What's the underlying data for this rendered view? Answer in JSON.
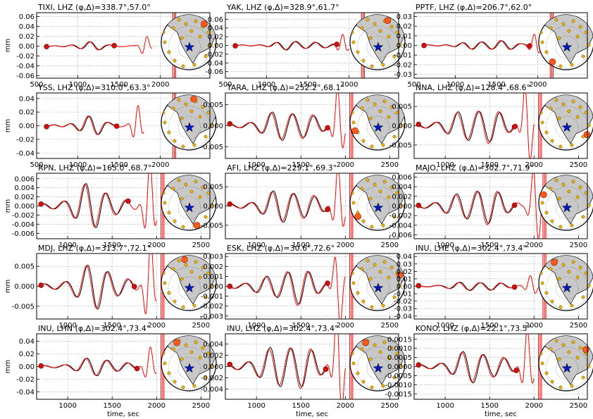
{
  "figure": {
    "ylabel": "mm",
    "xlabel": "time, sec",
    "series_colors": {
      "observed": "#000000",
      "synthetic": "#ff0000"
    },
    "marker_color": "#cc1111",
    "map_colors": {
      "land": "#c8c8c8",
      "stations": "#f0b400",
      "highlight": "#ff5a1e",
      "epicenter": "#0018c0"
    }
  },
  "chart_data": [
    {
      "type": "line",
      "title": "TIXI, LHZ (φ,Δ)=338.7°,57.0°",
      "xlim": [
        500,
        2600
      ],
      "ylim": [
        -0.065,
        0.068
      ],
      "xticks": [
        "500",
        "1000",
        "1500",
        "2000"
      ],
      "yticks": [
        "0.06",
        "0.04",
        "0.02",
        "0.00",
        "-0.02",
        "-0.04",
        "-0.06"
      ],
      "ytick_values": [
        0.06,
        0.04,
        0.02,
        0.0,
        -0.02,
        -0.04,
        -0.06
      ],
      "xtick_values": [
        500,
        1000,
        1500,
        2000
      ],
      "window": [
        620,
        1440
      ],
      "synthetic_end": 1900,
      "amplitude": 0.008,
      "phase": 0.3,
      "cutoff": 2150,
      "station_angle": 50
    },
    {
      "type": "line",
      "title": "YAK, LHZ (φ,Δ)=328.9°,61.7°",
      "xlim": [
        500,
        2600
      ],
      "ylim": [
        -0.075,
        0.075
      ],
      "xticks": [
        "500",
        "1000",
        "1500",
        "2000"
      ],
      "yticks": [
        "0.06",
        "0.04",
        "0.02",
        "0.00",
        "-0.02",
        "-0.04",
        "-0.06"
      ],
      "ytick_values": [
        0.06,
        0.04,
        0.02,
        0.0,
        -0.02,
        -0.04,
        -0.06
      ],
      "xtick_values": [
        500,
        1000,
        1500,
        2000
      ],
      "window": [
        620,
        1850
      ],
      "synthetic_end": 2000,
      "amplitude": 0.01,
      "phase": 1.1,
      "cutoff": 2150,
      "station_angle": 65
    },
    {
      "type": "line",
      "title": "PPTF, LHZ (φ,Δ)=206.7°,62.0°",
      "xlim": [
        500,
        2600
      ],
      "ylim": [
        -0.034,
        0.034
      ],
      "xticks": [
        "500",
        "1000",
        "1500",
        "2000"
      ],
      "yticks": [
        "0.03",
        "0.02",
        "0.01",
        "0.00",
        "-0.01",
        "-0.02",
        "-0.03"
      ],
      "ytick_values": [
        0.03,
        0.02,
        0.01,
        0.0,
        -0.01,
        -0.02,
        -0.03
      ],
      "xtick_values": [
        500,
        1000,
        1500,
        2000
      ],
      "window": [
        620,
        1900
      ],
      "synthetic_end": 2050,
      "amplitude": 0.005,
      "phase": 2.0,
      "cutoff": 2150,
      "station_angle": 235
    },
    {
      "type": "line",
      "title": "YSS, LHZ (φ,Δ)=310.0°,63.3°",
      "xlim": [
        500,
        2600
      ],
      "ylim": [
        -0.048,
        0.048
      ],
      "xticks": [
        "500",
        "1000",
        "1500",
        "2000"
      ],
      "yticks": [
        "0.04",
        "0.02",
        "0.00",
        "-0.02",
        "-0.04"
      ],
      "ytick_values": [
        0.04,
        0.02,
        0.0,
        -0.02,
        -0.04
      ],
      "xtick_values": [
        500,
        1000,
        1500,
        2000
      ],
      "window": [
        620,
        1470
      ],
      "synthetic_end": 1800,
      "amplitude": 0.012,
      "phase": 0.7,
      "cutoff": 2150,
      "station_angle": 78
    },
    {
      "type": "line",
      "title": "TARA, LHZ (φ,Δ)=252.2°,68.1°",
      "xlim": [
        650,
        2600
      ],
      "ylim": [
        -0.0078,
        0.0078
      ],
      "xticks": [
        "1000",
        "1500",
        "2000",
        "2500"
      ],
      "yticks": [
        "0.005",
        "0.000",
        "-0.005"
      ],
      "ytick_values": [
        0.005,
        0.0,
        -0.005
      ],
      "xtick_values": [
        1000,
        1500,
        2000,
        2500
      ],
      "window": [
        700,
        1800
      ],
      "synthetic_end": 2000,
      "amplitude": 0.0035,
      "phase": 1.6,
      "cutoff": 2050,
      "station_angle": 200
    },
    {
      "type": "line",
      "title": "NNA, LHZ (φ,Δ)=128.4°,68.6°",
      "xlim": [
        650,
        2600
      ],
      "ylim": [
        -0.0085,
        0.0085
      ],
      "xticks": [
        "1000",
        "1500",
        "2000",
        "2500"
      ],
      "yticks": [
        "0.005",
        "0.000",
        "-0.005"
      ],
      "ytick_values": [
        0.005,
        0.0,
        -0.005
      ],
      "xtick_values": [
        1000,
        1500,
        2000,
        2500
      ],
      "window": [
        700,
        1780
      ],
      "synthetic_end": 2000,
      "amplitude": 0.0045,
      "phase": 2.4,
      "cutoff": 2050,
      "station_angle": 330
    },
    {
      "type": "line",
      "title": "RPN, LHZ (φ,Δ)=165.0°,68.7°",
      "xlim": [
        650,
        2600
      ],
      "ylim": [
        -0.0072,
        0.0072
      ],
      "xticks": [
        "1000",
        "1500",
        "2000",
        "2500"
      ],
      "yticks": [
        "0.006",
        "0.004",
        "0.002",
        "0.000",
        "-0.002",
        "-0.004",
        "-0.006"
      ],
      "ytick_values": [
        0.006,
        0.004,
        0.002,
        0.0,
        -0.002,
        -0.004,
        -0.006
      ],
      "xtick_values": [
        1000,
        1500,
        2000,
        2500
      ],
      "window": [
        700,
        1680
      ],
      "synthetic_end": 2000,
      "amplitude": 0.004,
      "phase": 0.9,
      "cutoff": 2050,
      "station_angle": 290
    },
    {
      "type": "line",
      "title": "AFI, LHZ (φ,Δ)=229.1°,69.3°",
      "xlim": [
        650,
        2600
      ],
      "ylim": [
        -0.0085,
        0.0085
      ],
      "xticks": [
        "1000",
        "1500",
        "2000",
        "2500"
      ],
      "yticks": [
        "0.005",
        "0.000",
        "-0.005"
      ],
      "ytick_values": [
        0.005,
        0.0,
        -0.005
      ],
      "xtick_values": [
        1000,
        1500,
        2000,
        2500
      ],
      "window": [
        700,
        1800
      ],
      "synthetic_end": 2000,
      "amplitude": 0.004,
      "phase": 1.3,
      "cutoff": 2050,
      "station_angle": 215
    },
    {
      "type": "line",
      "title": "MAJO, LHZ (φ,Δ)=302.7°,71.9°",
      "xlim": [
        650,
        2600
      ],
      "ylim": [
        -0.0068,
        0.0068
      ],
      "xticks": [
        "1000",
        "1500",
        "2000",
        "2500"
      ],
      "yticks": [
        "0.006",
        "0.004",
        "0.002",
        "0.000",
        "-0.002",
        "-0.004",
        "-0.006"
      ],
      "ytick_values": [
        0.006,
        0.004,
        0.002,
        0.0,
        -0.002,
        -0.004,
        -0.006
      ],
      "xtick_values": [
        1000,
        1500,
        2000,
        2500
      ],
      "window": [
        700,
        1780
      ],
      "synthetic_end": 2100,
      "amplitude": 0.0035,
      "phase": 2.8,
      "cutoff": 2100,
      "station_angle": 160
    },
    {
      "type": "line",
      "title": "MDJ, LHZ (φ,Δ)=313.7°,72.1°",
      "xlim": [
        650,
        2600
      ],
      "ylim": [
        -0.0082,
        0.0082
      ],
      "xticks": [
        "1000",
        "1500",
        "2000",
        "2500"
      ],
      "yticks": [
        "0.005",
        "0.000",
        "-0.005"
      ],
      "ytick_values": [
        0.005,
        0.0,
        -0.005
      ],
      "xtick_values": [
        1000,
        1500,
        2000,
        2500
      ],
      "window": [
        700,
        1750
      ],
      "synthetic_end": 2000,
      "amplitude": 0.0045,
      "phase": 0.4,
      "cutoff": 2050,
      "station_angle": 100
    },
    {
      "type": "line",
      "title": "ESK, LHZ (φ,Δ)=30.6°,72.6°",
      "xlim": [
        650,
        2600
      ],
      "ylim": [
        -0.0033,
        0.0033
      ],
      "xticks": [
        "1000",
        "1500",
        "2000",
        "2500"
      ],
      "yticks": [
        "0.003",
        "0.002",
        "0.001",
        "0.000",
        "-0.001",
        "-0.002",
        "-0.003"
      ],
      "ytick_values": [
        0.003,
        0.002,
        0.001,
        0.0,
        -0.001,
        -0.002,
        -0.003
      ],
      "xtick_values": [
        1000,
        1500,
        2000,
        2500
      ],
      "window": [
        700,
        1800
      ],
      "synthetic_end": 2000,
      "amplitude": 0.0016,
      "phase": 3.1,
      "cutoff": 2050,
      "station_angle": 20
    },
    {
      "type": "line",
      "title": "INU, LHE (φ,Δ)=302.4°,73.4°",
      "xlim": [
        650,
        2600
      ],
      "ylim": [
        -0.044,
        0.044
      ],
      "xticks": [
        "1000",
        "1500",
        "2000",
        "2500"
      ],
      "yticks": [
        "0.04",
        "0.03",
        "0.02",
        "0.01",
        "0.00",
        "-0.01",
        "-0.02",
        "-0.03",
        "-0.04"
      ],
      "ytick_values": [
        0.04,
        0.03,
        0.02,
        0.01,
        0.0,
        -0.01,
        -0.02,
        -0.03,
        -0.04
      ],
      "xtick_values": [
        1000,
        1500,
        2000,
        2500
      ],
      "window": [
        700,
        1780
      ],
      "synthetic_end": 2050,
      "amplitude": 0.006,
      "phase": 1.9,
      "cutoff": 2100,
      "station_angle": 120
    },
    {
      "type": "line",
      "title": "INU, LHN (φ,Δ)=302.4°,73.4°",
      "xlim": [
        650,
        2600
      ],
      "ylim": [
        -0.052,
        0.052
      ],
      "xticks": [
        "1000",
        "1500",
        "2000",
        "2500"
      ],
      "yticks": [
        "0.04",
        "0.02",
        "0.00",
        "-0.02",
        "-0.04"
      ],
      "ytick_values": [
        0.04,
        0.02,
        0.0,
        -0.02,
        -0.04
      ],
      "xtick_values": [
        1000,
        1500,
        2000,
        2500
      ],
      "window": [
        700,
        1780
      ],
      "synthetic_end": 2000,
      "amplitude": 0.012,
      "phase": 0.6,
      "cutoff": 2050,
      "station_angle": 120
    },
    {
      "type": "line",
      "title": "INU, LHZ (φ,Δ)=302.4°,73.4°",
      "xlim": [
        650,
        2600
      ],
      "ylim": [
        -0.0058,
        0.0058
      ],
      "xticks": [
        "1000",
        "1500",
        "2000",
        "2500"
      ],
      "yticks": [
        "0.004",
        "0.002",
        "0.000",
        "-0.002",
        "-0.004"
      ],
      "ytick_values": [
        0.004,
        0.002,
        0.0,
        -0.002,
        -0.004
      ],
      "xtick_values": [
        1000,
        1500,
        2000,
        2500
      ],
      "window": [
        700,
        1780
      ],
      "synthetic_end": 2000,
      "amplitude": 0.004,
      "phase": 2.2,
      "cutoff": 2050,
      "station_angle": 120
    },
    {
      "type": "line",
      "title": "KONO, LHZ (φ,Δ)=22.1°,73.5°",
      "xlim": [
        650,
        2600
      ],
      "ylim": [
        -0.0018,
        0.0018
      ],
      "xticks": [
        "1000",
        "1500",
        "2000",
        "2500"
      ],
      "yticks": [
        "0.0015",
        "0.0010",
        "0.0005",
        "0.0000",
        "-0.0005",
        "-0.0010",
        "-0.0015"
      ],
      "ytick_values": [
        0.0015,
        0.001,
        0.0005,
        0.0,
        -0.0005,
        -0.001,
        -0.0015
      ],
      "xtick_values": [
        1000,
        1500,
        2000,
        2500
      ],
      "window": [
        700,
        1800
      ],
      "synthetic_end": 2000,
      "amplitude": 0.0008,
      "phase": 1.0,
      "cutoff": 2050,
      "station_angle": 35
    }
  ]
}
